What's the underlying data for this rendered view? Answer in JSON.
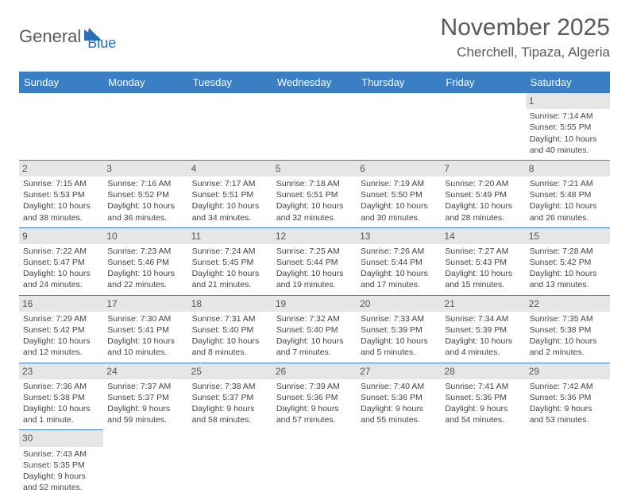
{
  "logo": {
    "part1": "General",
    "part2": "Blue"
  },
  "title": "November 2025",
  "location": "Cherchell, Tipaza, Algeria",
  "colors": {
    "header_bg": "#3a7fc4",
    "header_text": "#ffffff",
    "daynum_bg": "#e6e6e6",
    "border": "#3a7fc4",
    "title_color": "#5a5a5a",
    "logo_blue": "#2a6fb5"
  },
  "dayNames": [
    "Sunday",
    "Monday",
    "Tuesday",
    "Wednesday",
    "Thursday",
    "Friday",
    "Saturday"
  ],
  "weeks": [
    [
      null,
      null,
      null,
      null,
      null,
      null,
      {
        "n": "1",
        "sr": "Sunrise: 7:14 AM",
        "ss": "Sunset: 5:55 PM",
        "d1": "Daylight: 10 hours",
        "d2": "and 40 minutes."
      }
    ],
    [
      {
        "n": "2",
        "sr": "Sunrise: 7:15 AM",
        "ss": "Sunset: 5:53 PM",
        "d1": "Daylight: 10 hours",
        "d2": "and 38 minutes."
      },
      {
        "n": "3",
        "sr": "Sunrise: 7:16 AM",
        "ss": "Sunset: 5:52 PM",
        "d1": "Daylight: 10 hours",
        "d2": "and 36 minutes."
      },
      {
        "n": "4",
        "sr": "Sunrise: 7:17 AM",
        "ss": "Sunset: 5:51 PM",
        "d1": "Daylight: 10 hours",
        "d2": "and 34 minutes."
      },
      {
        "n": "5",
        "sr": "Sunrise: 7:18 AM",
        "ss": "Sunset: 5:51 PM",
        "d1": "Daylight: 10 hours",
        "d2": "and 32 minutes."
      },
      {
        "n": "6",
        "sr": "Sunrise: 7:19 AM",
        "ss": "Sunset: 5:50 PM",
        "d1": "Daylight: 10 hours",
        "d2": "and 30 minutes."
      },
      {
        "n": "7",
        "sr": "Sunrise: 7:20 AM",
        "ss": "Sunset: 5:49 PM",
        "d1": "Daylight: 10 hours",
        "d2": "and 28 minutes."
      },
      {
        "n": "8",
        "sr": "Sunrise: 7:21 AM",
        "ss": "Sunset: 5:48 PM",
        "d1": "Daylight: 10 hours",
        "d2": "and 26 minutes."
      }
    ],
    [
      {
        "n": "9",
        "sr": "Sunrise: 7:22 AM",
        "ss": "Sunset: 5:47 PM",
        "d1": "Daylight: 10 hours",
        "d2": "and 24 minutes."
      },
      {
        "n": "10",
        "sr": "Sunrise: 7:23 AM",
        "ss": "Sunset: 5:46 PM",
        "d1": "Daylight: 10 hours",
        "d2": "and 22 minutes."
      },
      {
        "n": "11",
        "sr": "Sunrise: 7:24 AM",
        "ss": "Sunset: 5:45 PM",
        "d1": "Daylight: 10 hours",
        "d2": "and 21 minutes."
      },
      {
        "n": "12",
        "sr": "Sunrise: 7:25 AM",
        "ss": "Sunset: 5:44 PM",
        "d1": "Daylight: 10 hours",
        "d2": "and 19 minutes."
      },
      {
        "n": "13",
        "sr": "Sunrise: 7:26 AM",
        "ss": "Sunset: 5:44 PM",
        "d1": "Daylight: 10 hours",
        "d2": "and 17 minutes."
      },
      {
        "n": "14",
        "sr": "Sunrise: 7:27 AM",
        "ss": "Sunset: 5:43 PM",
        "d1": "Daylight: 10 hours",
        "d2": "and 15 minutes."
      },
      {
        "n": "15",
        "sr": "Sunrise: 7:28 AM",
        "ss": "Sunset: 5:42 PM",
        "d1": "Daylight: 10 hours",
        "d2": "and 13 minutes."
      }
    ],
    [
      {
        "n": "16",
        "sr": "Sunrise: 7:29 AM",
        "ss": "Sunset: 5:42 PM",
        "d1": "Daylight: 10 hours",
        "d2": "and 12 minutes."
      },
      {
        "n": "17",
        "sr": "Sunrise: 7:30 AM",
        "ss": "Sunset: 5:41 PM",
        "d1": "Daylight: 10 hours",
        "d2": "and 10 minutes."
      },
      {
        "n": "18",
        "sr": "Sunrise: 7:31 AM",
        "ss": "Sunset: 5:40 PM",
        "d1": "Daylight: 10 hours",
        "d2": "and 8 minutes."
      },
      {
        "n": "19",
        "sr": "Sunrise: 7:32 AM",
        "ss": "Sunset: 5:40 PM",
        "d1": "Daylight: 10 hours",
        "d2": "and 7 minutes."
      },
      {
        "n": "20",
        "sr": "Sunrise: 7:33 AM",
        "ss": "Sunset: 5:39 PM",
        "d1": "Daylight: 10 hours",
        "d2": "and 5 minutes."
      },
      {
        "n": "21",
        "sr": "Sunrise: 7:34 AM",
        "ss": "Sunset: 5:39 PM",
        "d1": "Daylight: 10 hours",
        "d2": "and 4 minutes."
      },
      {
        "n": "22",
        "sr": "Sunrise: 7:35 AM",
        "ss": "Sunset: 5:38 PM",
        "d1": "Daylight: 10 hours",
        "d2": "and 2 minutes."
      }
    ],
    [
      {
        "n": "23",
        "sr": "Sunrise: 7:36 AM",
        "ss": "Sunset: 5:38 PM",
        "d1": "Daylight: 10 hours",
        "d2": "and 1 minute."
      },
      {
        "n": "24",
        "sr": "Sunrise: 7:37 AM",
        "ss": "Sunset: 5:37 PM",
        "d1": "Daylight: 9 hours",
        "d2": "and 59 minutes."
      },
      {
        "n": "25",
        "sr": "Sunrise: 7:38 AM",
        "ss": "Sunset: 5:37 PM",
        "d1": "Daylight: 9 hours",
        "d2": "and 58 minutes."
      },
      {
        "n": "26",
        "sr": "Sunrise: 7:39 AM",
        "ss": "Sunset: 5:36 PM",
        "d1": "Daylight: 9 hours",
        "d2": "and 57 minutes."
      },
      {
        "n": "27",
        "sr": "Sunrise: 7:40 AM",
        "ss": "Sunset: 5:36 PM",
        "d1": "Daylight: 9 hours",
        "d2": "and 55 minutes."
      },
      {
        "n": "28",
        "sr": "Sunrise: 7:41 AM",
        "ss": "Sunset: 5:36 PM",
        "d1": "Daylight: 9 hours",
        "d2": "and 54 minutes."
      },
      {
        "n": "29",
        "sr": "Sunrise: 7:42 AM",
        "ss": "Sunset: 5:36 PM",
        "d1": "Daylight: 9 hours",
        "d2": "and 53 minutes."
      }
    ],
    [
      {
        "n": "30",
        "sr": "Sunrise: 7:43 AM",
        "ss": "Sunset: 5:35 PM",
        "d1": "Daylight: 9 hours",
        "d2": "and 52 minutes."
      },
      null,
      null,
      null,
      null,
      null,
      null
    ]
  ]
}
